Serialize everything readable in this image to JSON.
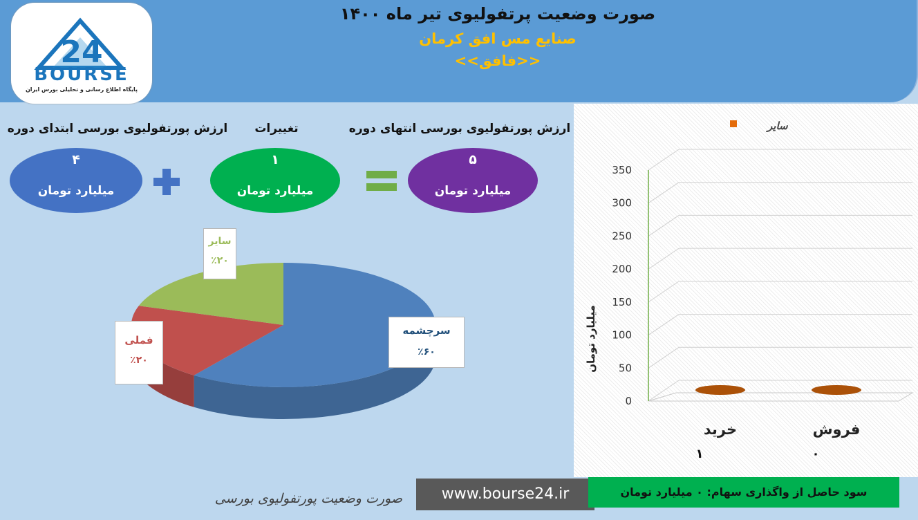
{
  "header": {
    "title": "صورت وضعیت پرتفولیوی تیر ماه ۱۴۰۰",
    "company": "صنایع مس افق کرمان",
    "symbol": "<<فافق>>"
  },
  "logo": {
    "brand": "BOURSE",
    "tagline": "پایگاه اطلاع رسانی و تحلیلی بورس ایران",
    "number": "24"
  },
  "summary": {
    "start": {
      "label": "ارزش پورتفولیوی بورسی ابتدای دوره",
      "value": "۴",
      "unit": "میلیارد تومان",
      "color": "#4472c4"
    },
    "change": {
      "label": "تغییرات",
      "value": "۱",
      "unit": "میلیارد تومان",
      "color": "#00b050"
    },
    "end": {
      "label": "ارزش پورتفولیوی بورسی انتهای دوره",
      "value": "۵",
      "unit": "میلیارد تومان",
      "color": "#7030a0"
    }
  },
  "chart_data": [
    {
      "type": "pie",
      "categories": [
        "سرچشمه",
        "فملی",
        "سایر"
      ],
      "values": [
        60,
        20,
        20
      ],
      "labels": [
        "٪۶۰",
        "٪۲۰",
        "٪۲۰"
      ],
      "colors": [
        "#4f81bd",
        "#c0504d",
        "#9bbb59"
      ]
    },
    {
      "type": "bar",
      "categories": [
        "خرید",
        "فروش"
      ],
      "series": [
        {
          "name": "سایر",
          "values": [
            1,
            0
          ]
        }
      ],
      "value_labels": [
        "۱",
        "۰"
      ],
      "ylabel": "میلیارد تومان",
      "ylim": [
        0,
        350
      ],
      "yticks": [
        "0",
        "50",
        "100",
        "150",
        "200",
        "250",
        "300",
        "350"
      ],
      "series_color": "#e46c0a"
    }
  ],
  "footer": {
    "report_title": "صورت وضعیت پورتفولیوی بورسی",
    "url": "www.bourse24.ir",
    "profit": "سود حاصل از واگذاری سهام: ۰ میلیارد تومان"
  }
}
